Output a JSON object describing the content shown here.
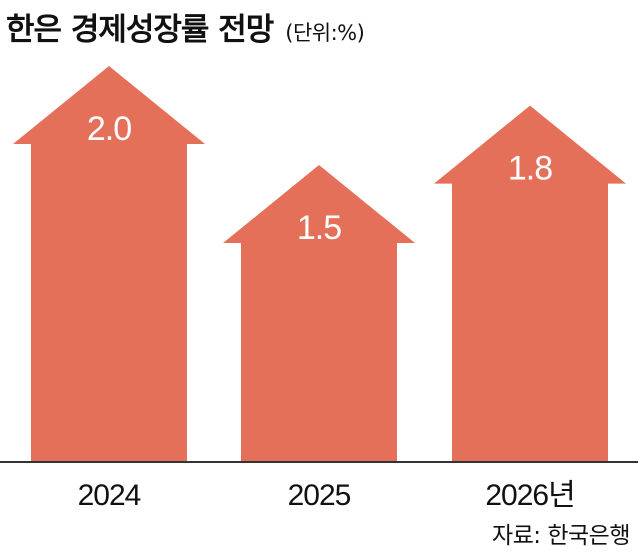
{
  "title": "한은 경제성장률 전망",
  "unit": "(단위:%)",
  "source": "자료: 한국은행",
  "colors": {
    "bar": "#e4705a",
    "baseline": "#333333",
    "value_label": "#ffffff"
  },
  "chart_data": {
    "type": "bar",
    "title": "한은 경제성장률 전망",
    "unit": "(단위:%)",
    "categories": [
      "2024",
      "2025",
      "2026년"
    ],
    "values": [
      2.0,
      1.5,
      1.8
    ],
    "value_labels": [
      "2.0",
      "1.5",
      "1.8"
    ],
    "xlabel": "",
    "ylabel": "",
    "ylim": [
      0,
      2.0
    ],
    "grid": false,
    "legend": "none",
    "bar_shape": "arrow-up"
  }
}
